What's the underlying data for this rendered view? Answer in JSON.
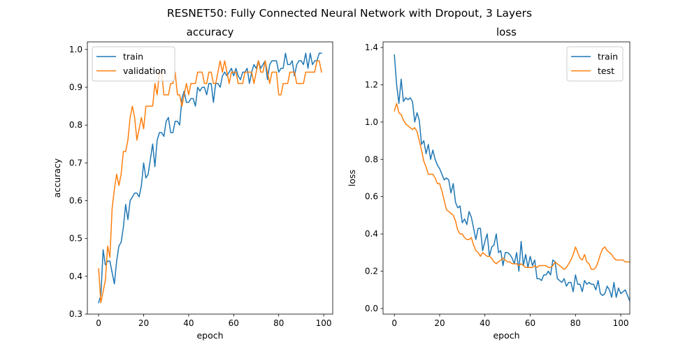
{
  "figure": {
    "suptitle": "RESNET50: Fully Connected Neural Network with Dropout, 3 Layers"
  },
  "chart_data": [
    {
      "type": "line",
      "title": "accuracy",
      "xlabel": "epoch",
      "ylabel": "accuracy",
      "xlim": [
        -5,
        104
      ],
      "ylim": [
        0.3,
        1.02
      ],
      "xticks": [
        0,
        20,
        40,
        60,
        80,
        100
      ],
      "yticks": [
        0.3,
        0.4,
        0.5,
        0.6,
        0.7,
        0.8,
        0.9,
        1.0
      ],
      "ytick_labels": [
        "0.3",
        "0.4",
        "0.5",
        "0.6",
        "0.7",
        "0.8",
        "0.9",
        "1.0"
      ],
      "legend_position": "top-left",
      "grid": false,
      "series": [
        {
          "name": "train",
          "color": "#1f77b4",
          "values": [
            0.33,
            0.35,
            0.47,
            0.43,
            0.44,
            0.44,
            0.41,
            0.38,
            0.44,
            0.48,
            0.49,
            0.53,
            0.59,
            0.55,
            0.6,
            0.61,
            0.62,
            0.62,
            0.61,
            0.64,
            0.7,
            0.66,
            0.67,
            0.71,
            0.75,
            0.69,
            0.76,
            0.78,
            0.78,
            0.77,
            0.81,
            0.82,
            0.78,
            0.78,
            0.81,
            0.81,
            0.8,
            0.87,
            0.89,
            0.86,
            0.86,
            0.87,
            0.87,
            0.85,
            0.9,
            0.89,
            0.9,
            0.9,
            0.88,
            0.91,
            0.91,
            0.86,
            0.91,
            0.91,
            0.9,
            0.93,
            0.94,
            0.93,
            0.94,
            0.95,
            0.93,
            0.95,
            0.93,
            0.92,
            0.94,
            0.94,
            0.95,
            0.91,
            0.94,
            0.96,
            0.95,
            0.97,
            0.95,
            0.96,
            0.97,
            0.92,
            0.96,
            0.97,
            0.97,
            0.97,
            0.94,
            0.95,
            0.95,
            0.99,
            0.96,
            0.96,
            0.97,
            0.93,
            0.96,
            0.97,
            0.97,
            0.96,
            0.99,
            0.95,
            0.99,
            0.96,
            0.97,
            0.97,
            0.99,
            0.99
          ]
        },
        {
          "name": "validation",
          "color": "#ff7f0e",
          "values": [
            0.42,
            0.33,
            0.36,
            0.39,
            0.48,
            0.45,
            0.58,
            0.63,
            0.67,
            0.64,
            0.67,
            0.73,
            0.73,
            0.76,
            0.82,
            0.85,
            0.82,
            0.76,
            0.79,
            0.82,
            0.79,
            0.85,
            0.85,
            0.85,
            0.85,
            0.91,
            0.88,
            0.94,
            0.94,
            0.88,
            0.88,
            0.88,
            0.91,
            0.91,
            0.94,
            0.88,
            0.88,
            0.85,
            0.88,
            0.91,
            0.88,
            0.91,
            0.91,
            0.91,
            0.94,
            0.94,
            0.94,
            0.91,
            0.91,
            0.94,
            0.94,
            0.91,
            0.91,
            0.94,
            0.97,
            0.94,
            0.97,
            0.94,
            0.91,
            0.94,
            0.94,
            0.94,
            0.91,
            0.91,
            0.91,
            0.94,
            0.94,
            0.94,
            0.94,
            0.91,
            0.94,
            0.97,
            0.94,
            0.94,
            0.97,
            0.94,
            0.91,
            0.94,
            0.94,
            0.94,
            0.88,
            0.88,
            0.91,
            0.91,
            0.91,
            0.94,
            0.94,
            0.94,
            0.91,
            0.91,
            0.91,
            0.91,
            0.94,
            0.94,
            0.94,
            0.94,
            0.94,
            0.97,
            0.97,
            0.94
          ]
        }
      ]
    },
    {
      "type": "line",
      "title": "loss",
      "xlabel": "epoch",
      "ylabel": "loss",
      "xlim": [
        -5,
        104
      ],
      "ylim": [
        -0.03,
        1.43
      ],
      "xticks": [
        0,
        20,
        40,
        60,
        80,
        100
      ],
      "yticks": [
        0.0,
        0.2,
        0.4,
        0.6,
        0.8,
        1.0,
        1.2,
        1.4
      ],
      "ytick_labels": [
        "0.0",
        "0.2",
        "0.4",
        "0.6",
        "0.8",
        "1.0",
        "1.2",
        "1.4"
      ],
      "legend_position": "top-right",
      "grid": false,
      "series": [
        {
          "name": "train",
          "color": "#1f77b4",
          "values": [
            1.36,
            1.2,
            1.1,
            1.23,
            1.11,
            1.13,
            1.12,
            1.13,
            1.11,
            1.0,
            1.05,
            1.01,
            0.88,
            0.9,
            0.83,
            0.88,
            0.8,
            0.85,
            0.8,
            0.77,
            0.75,
            0.72,
            0.69,
            0.7,
            0.69,
            0.62,
            0.67,
            0.57,
            0.54,
            0.55,
            0.46,
            0.48,
            0.45,
            0.52,
            0.49,
            0.43,
            0.37,
            0.43,
            0.43,
            0.31,
            0.36,
            0.4,
            0.28,
            0.33,
            0.34,
            0.4,
            0.3,
            0.31,
            0.23,
            0.3,
            0.3,
            0.29,
            0.27,
            0.24,
            0.3,
            0.2,
            0.36,
            0.23,
            0.29,
            0.22,
            0.28,
            0.23,
            0.26,
            0.16,
            0.16,
            0.15,
            0.18,
            0.18,
            0.2,
            0.18,
            0.26,
            0.25,
            0.16,
            0.15,
            0.14,
            0.16,
            0.12,
            0.14,
            0.14,
            0.09,
            0.18,
            0.13,
            0.13,
            0.09,
            0.15,
            0.13,
            0.14,
            0.13,
            0.13,
            0.1,
            0.15,
            0.08,
            0.07,
            0.08,
            0.12,
            0.1,
            0.06,
            0.14,
            0.06,
            0.11,
            0.08,
            0.09,
            0.1,
            0.07,
            0.04
          ]
        },
        {
          "name": "test",
          "color": "#ff7f0e",
          "values": [
            1.06,
            1.1,
            1.05,
            1.04,
            1.01,
            0.99,
            0.98,
            0.97,
            0.96,
            0.97,
            0.95,
            0.9,
            0.85,
            0.79,
            0.76,
            0.72,
            0.72,
            0.72,
            0.7,
            0.67,
            0.67,
            0.63,
            0.58,
            0.53,
            0.52,
            0.51,
            0.5,
            0.47,
            0.42,
            0.4,
            0.4,
            0.38,
            0.37,
            0.37,
            0.38,
            0.34,
            0.31,
            0.3,
            0.28,
            0.3,
            0.29,
            0.28,
            0.28,
            0.27,
            0.25,
            0.24,
            0.25,
            0.26,
            0.27,
            0.26,
            0.25,
            0.25,
            0.24,
            0.24,
            0.24,
            0.23,
            0.24,
            0.23,
            0.22,
            0.22,
            0.22,
            0.22,
            0.23,
            0.22,
            0.23,
            0.23,
            0.23,
            0.23,
            0.22,
            0.22,
            0.23,
            0.25,
            0.24,
            0.23,
            0.22,
            0.21,
            0.22,
            0.24,
            0.26,
            0.29,
            0.33,
            0.3,
            0.27,
            0.26,
            0.29,
            0.25,
            0.24,
            0.21,
            0.21,
            0.22,
            0.25,
            0.29,
            0.32,
            0.33,
            0.31,
            0.3,
            0.29,
            0.27,
            0.26,
            0.26,
            0.26,
            0.26,
            0.25,
            0.25,
            0.25
          ]
        }
      ]
    }
  ]
}
